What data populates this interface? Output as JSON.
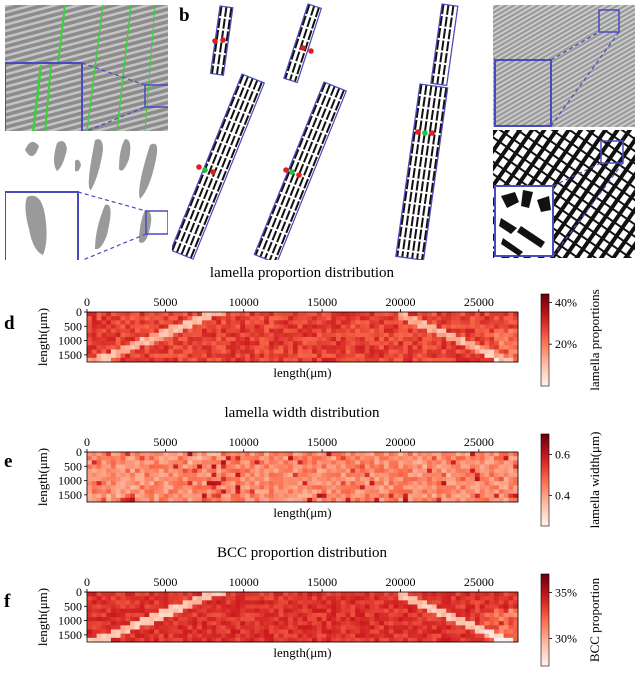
{
  "panels": {
    "a": {
      "letter": "a"
    },
    "b": {
      "letter": "b"
    },
    "c": {
      "letter": "c"
    }
  },
  "colors": {
    "inset_box": "#4a4ac0",
    "green_line": "#3bd13b",
    "marker_red": "#e02020",
    "marker_green": "#22c040"
  },
  "chart_data": [
    {
      "id": "d",
      "letter": "d",
      "type": "heatmap",
      "title": "lamella proportion distribution",
      "xlabel": "length(μm)",
      "ylabel": "length(μm)",
      "xticks": [
        0,
        5000,
        10000,
        15000,
        20000,
        25000
      ],
      "yticks": [
        0,
        500,
        1000,
        1500
      ],
      "xlim": [
        0,
        27500
      ],
      "ylim": [
        1750,
        0
      ],
      "colorbar": {
        "label": "lamella proportions",
        "ticks": [
          "40%",
          "20%"
        ],
        "tick_values": [
          0.4,
          0.2
        ],
        "range": [
          0.0,
          0.44
        ]
      },
      "colormap": "Reds"
    },
    {
      "id": "e",
      "letter": "e",
      "type": "heatmap",
      "title": "lamella width distribution",
      "xlabel": "length(μm)",
      "ylabel": "length(μm)",
      "xticks": [
        0,
        5000,
        10000,
        15000,
        20000,
        25000
      ],
      "yticks": [
        0,
        500,
        1000,
        1500
      ],
      "xlim": [
        0,
        27500
      ],
      "ylim": [
        1750,
        0
      ],
      "colorbar": {
        "label": "lamella width(μm)",
        "ticks": [
          "0.6",
          "0.4"
        ],
        "tick_values": [
          0.6,
          0.4
        ],
        "range": [
          0.25,
          0.7
        ]
      },
      "colormap": "Reds"
    },
    {
      "id": "f",
      "letter": "f",
      "type": "heatmap",
      "title": "BCC proportion distribution",
      "xlabel": "length(μm)",
      "ylabel": "length(μm)",
      "xticks": [
        0,
        5000,
        10000,
        15000,
        20000,
        25000
      ],
      "yticks": [
        0,
        500,
        1000,
        1500
      ],
      "xlim": [
        0,
        27500
      ],
      "ylim": [
        1750,
        0
      ],
      "colorbar": {
        "label": "BCC proportion",
        "ticks": [
          "35%",
          "30%"
        ],
        "tick_values": [
          0.35,
          0.3
        ],
        "range": [
          0.27,
          0.37
        ]
      },
      "colormap": "Reds"
    }
  ]
}
